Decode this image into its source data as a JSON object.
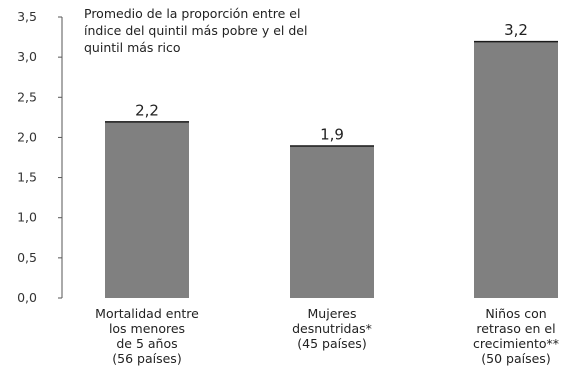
{
  "chart_data": {
    "type": "bar",
    "title_lines": [
      "Promedio de la proporción entre el",
      "índice del quintil más pobre y el del",
      "quintil más rico"
    ],
    "categories": [
      [
        "Mortalidad entre",
        "los menores",
        "de 5 años",
        "(56 países)"
      ],
      [
        "Mujeres",
        "desnutridas*",
        "(45 países)"
      ],
      [
        "Niños con",
        "retraso en el",
        "crecimiento**",
        "(50 países)"
      ]
    ],
    "values": [
      2.2,
      1.9,
      3.2
    ],
    "value_labels": [
      "2,2",
      "1,9",
      "3,2"
    ],
    "ylim": [
      0,
      3.5
    ],
    "yticks": [
      0,
      0.5,
      1.0,
      1.5,
      2.0,
      2.5,
      3.0,
      3.5
    ],
    "ytick_labels": [
      "0,0",
      "0,5",
      "1,0",
      "1,5",
      "2,0",
      "2,5",
      "3,0",
      "3,5"
    ],
    "grid": false,
    "colors": {
      "bar": "#808080",
      "bar_top": "#1a1a1a",
      "axis": "#555555"
    }
  }
}
